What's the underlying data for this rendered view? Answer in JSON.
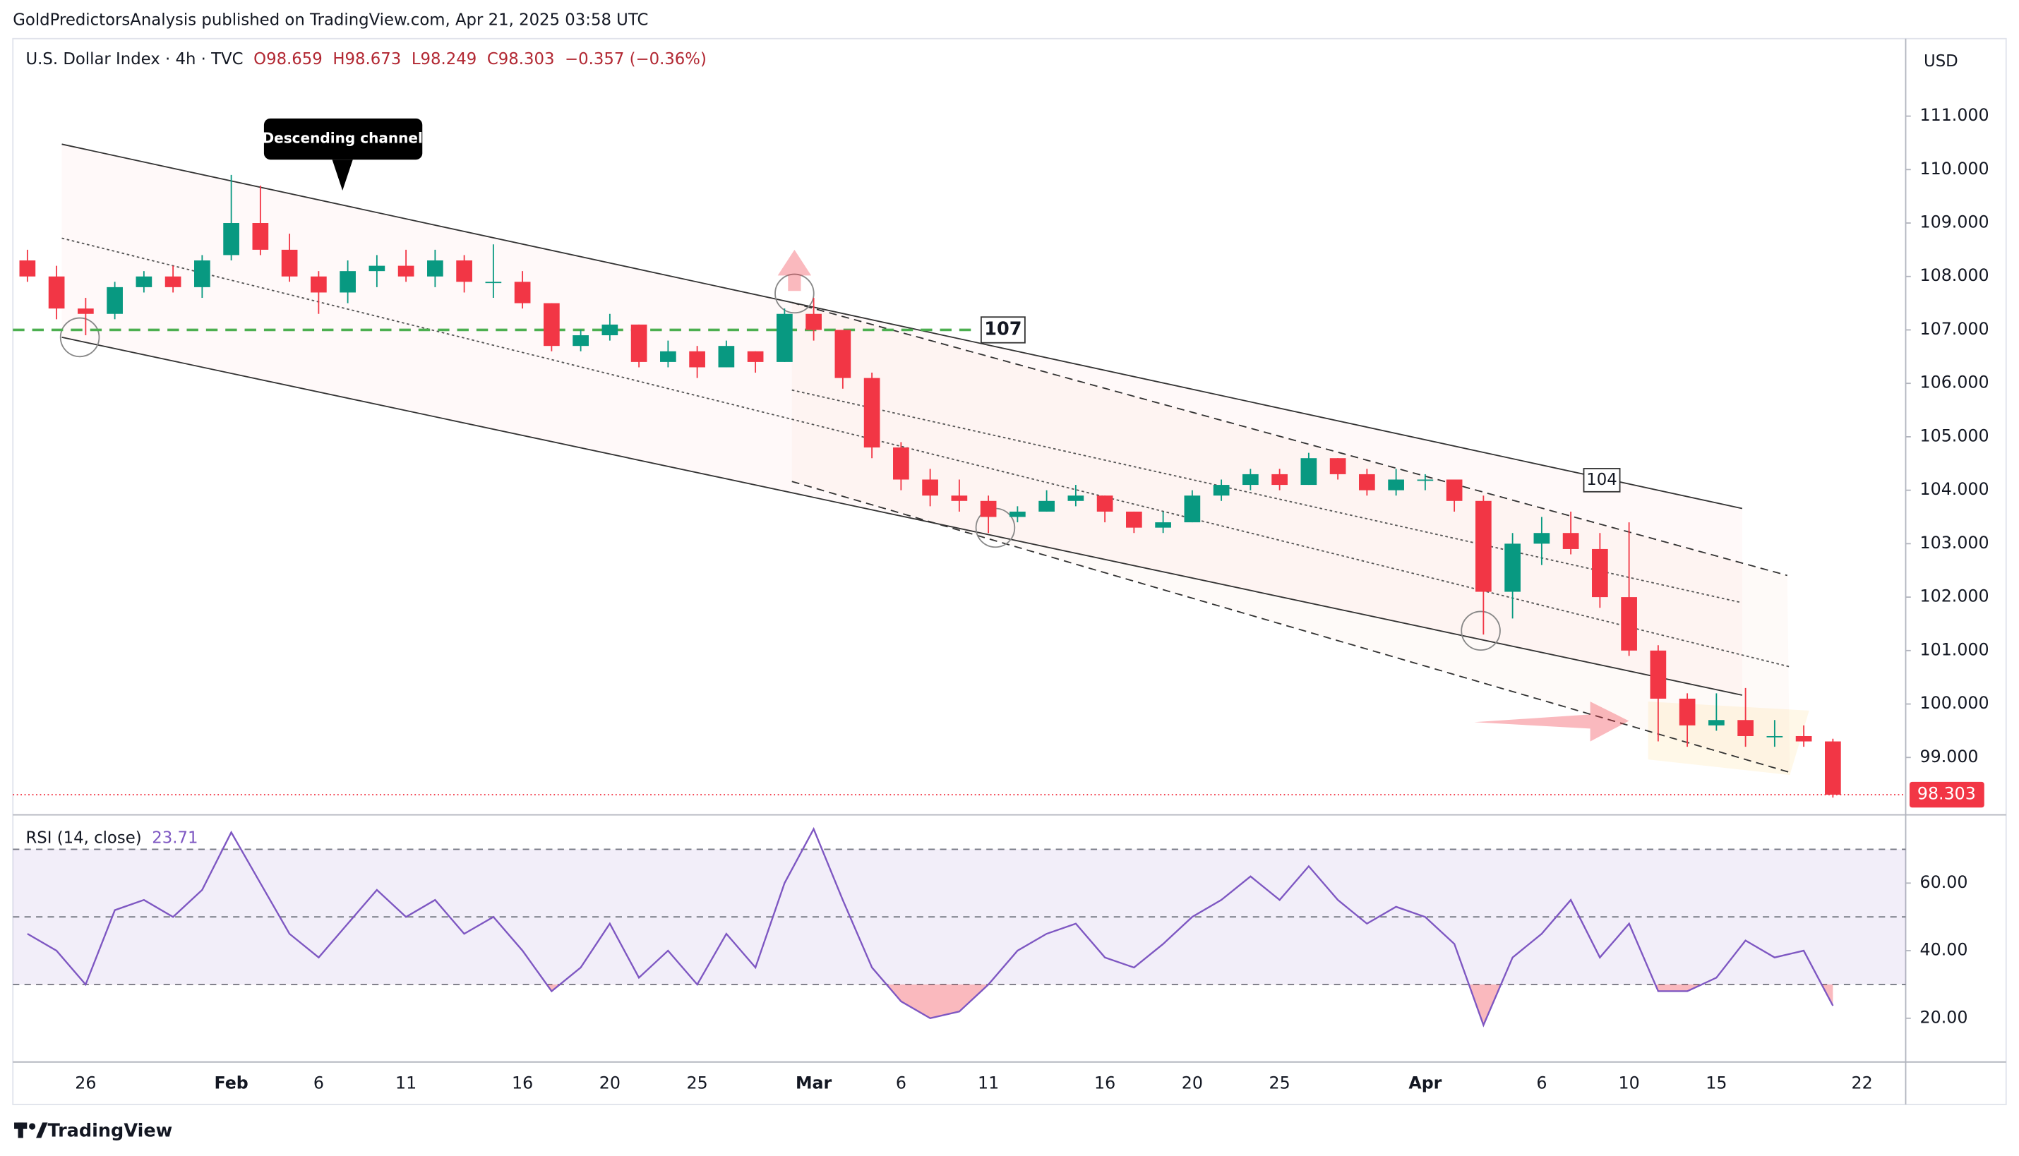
{
  "header": {
    "published": "GoldPredictorsAnalysis published on TradingView.com, Apr 21, 2025 03:58 UTC",
    "footer": "TradingView"
  },
  "chart_data": {
    "type": "candlestick",
    "title": "U.S. Dollar Index · 4h · TVC",
    "ohlc_labels": [
      "O98.659",
      "H98.673",
      "L98.249",
      "C98.303",
      "−0.357 (−0.36%)"
    ],
    "currency": "USD",
    "categories": [
      null,
      null,
      "26",
      null,
      null,
      null,
      null,
      "Feb",
      null,
      null,
      "6",
      null,
      null,
      "11",
      null,
      null,
      null,
      "16",
      null,
      null,
      "20",
      null,
      null,
      "25",
      null,
      null,
      null,
      "Mar",
      null,
      null,
      "6",
      null,
      null,
      "11",
      null,
      null,
      null,
      "16",
      null,
      null,
      "20",
      null,
      null,
      "25",
      null,
      null,
      null,
      null,
      "Apr",
      null,
      null,
      null,
      "6",
      null,
      null,
      "10",
      null,
      null,
      "15",
      null,
      null,
      null,
      null,
      "22",
      null
    ],
    "open": [
      108.3,
      108.0,
      107.4,
      107.3,
      107.8,
      108.0,
      107.8,
      108.4,
      109.0,
      108.5,
      108.0,
      107.7,
      108.1,
      108.2,
      108.0,
      108.3,
      107.9,
      107.9,
      107.5,
      106.7,
      106.9,
      107.1,
      106.4,
      106.6,
      106.3,
      106.6,
      106.4,
      107.3,
      107.0,
      106.1,
      104.8,
      104.2,
      103.9,
      103.8,
      103.5,
      103.6,
      103.8,
      103.9,
      103.6,
      103.3,
      103.4,
      103.9,
      104.1,
      104.3,
      104.1,
      104.6,
      104.3,
      104.0,
      104.2,
      104.2,
      103.8,
      102.1,
      103.0,
      103.2,
      102.9,
      102.0,
      101.0,
      100.1,
      99.6,
      99.7,
      99.4,
      99.4,
      99.3,
      null,
      null
    ],
    "high": [
      108.5,
      108.2,
      107.6,
      107.9,
      108.1,
      108.2,
      108.4,
      109.9,
      109.7,
      108.8,
      108.1,
      108.3,
      108.4,
      108.5,
      108.5,
      108.4,
      108.6,
      108.1,
      107.5,
      107.0,
      107.3,
      107.1,
      106.8,
      106.7,
      106.8,
      106.6,
      107.4,
      107.6,
      107.0,
      106.2,
      104.9,
      104.4,
      104.2,
      103.9,
      103.7,
      104.0,
      104.1,
      103.9,
      103.6,
      103.6,
      104.0,
      104.2,
      104.4,
      104.4,
      104.7,
      104.6,
      104.4,
      104.4,
      104.3,
      104.2,
      103.9,
      103.2,
      103.5,
      103.6,
      103.2,
      103.4,
      101.1,
      100.2,
      100.2,
      100.3,
      99.7,
      99.6,
      99.35,
      null,
      null
    ],
    "low": [
      107.9,
      107.2,
      106.9,
      107.2,
      107.7,
      107.7,
      107.6,
      108.3,
      108.4,
      107.9,
      107.3,
      107.5,
      107.8,
      107.9,
      107.8,
      107.7,
      107.6,
      107.4,
      106.6,
      106.6,
      106.8,
      106.3,
      106.3,
      106.1,
      106.3,
      106.2,
      106.4,
      106.8,
      105.9,
      104.6,
      104.0,
      103.7,
      103.6,
      103.2,
      103.4,
      103.6,
      103.7,
      103.4,
      103.2,
      103.2,
      103.4,
      103.8,
      104.0,
      104.0,
      104.1,
      104.2,
      103.9,
      103.9,
      104.0,
      103.6,
      101.3,
      101.6,
      102.6,
      102.8,
      101.8,
      100.9,
      99.3,
      99.2,
      99.5,
      99.2,
      99.2,
      99.2,
      98.249,
      null,
      null
    ],
    "close": [
      108.0,
      107.4,
      107.3,
      107.8,
      108.0,
      107.8,
      108.3,
      109.0,
      108.5,
      108.0,
      107.7,
      108.1,
      108.2,
      108.0,
      108.3,
      107.9,
      107.9,
      107.5,
      106.7,
      106.9,
      107.1,
      106.4,
      106.6,
      106.3,
      106.7,
      106.4,
      107.3,
      107.0,
      106.1,
      104.8,
      104.2,
      103.9,
      103.8,
      103.5,
      103.6,
      103.8,
      103.9,
      103.6,
      103.3,
      103.4,
      103.9,
      104.1,
      104.3,
      104.1,
      104.6,
      104.3,
      104.0,
      104.2,
      104.2,
      103.8,
      102.1,
      103.0,
      103.2,
      102.9,
      102.0,
      101.0,
      100.1,
      99.6,
      99.7,
      99.4,
      99.4,
      99.3,
      98.303,
      null,
      null
    ],
    "up_color": "#089981",
    "down_color": "#f23645",
    "ylim": [
      97.95,
      112.45
    ],
    "yticks": [
      {
        "value": 99,
        "label": "99.000"
      },
      {
        "value": 100,
        "label": "100.000"
      },
      {
        "value": 101,
        "label": "101.000"
      },
      {
        "value": 102,
        "label": "102.000"
      },
      {
        "value": 103,
        "label": "103.000"
      },
      {
        "value": 104,
        "label": "104.000"
      },
      {
        "value": 105,
        "label": "105.000"
      },
      {
        "value": 106,
        "label": "106.000"
      },
      {
        "value": 107,
        "label": "107.000"
      },
      {
        "value": 108,
        "label": "108.000"
      },
      {
        "value": 109,
        "label": "109.000"
      },
      {
        "value": 110,
        "label": "110.000"
      },
      {
        "value": 111,
        "label": "111.000"
      }
    ],
    "last_price": {
      "value": 98.303,
      "label": "98.303"
    },
    "level": {
      "value": 107,
      "label": "107",
      "color": "#4caf50"
    },
    "annotations": [
      "Descending channel",
      "104"
    ],
    "rsi": {
      "title": "RSI (14, close)",
      "last": "23.71",
      "color": "#7e57c2",
      "values": [
        45,
        40,
        30,
        52,
        55,
        50,
        58,
        75,
        60,
        45,
        38,
        48,
        58,
        50,
        55,
        45,
        50,
        40,
        28,
        35,
        48,
        32,
        40,
        30,
        45,
        35,
        60,
        76,
        55,
        35,
        25,
        20,
        22,
        30,
        40,
        45,
        48,
        38,
        35,
        42,
        50,
        55,
        62,
        55,
        65,
        55,
        48,
        53,
        50,
        42,
        18,
        38,
        45,
        55,
        38,
        48,
        28,
        28,
        32,
        43,
        38,
        40,
        23.71,
        null,
        null
      ],
      "ylim": [
        7.05,
        79.05
      ],
      "yticks": [
        {
          "value": 20,
          "label": "20.00"
        },
        {
          "value": 40,
          "label": "40.00"
        },
        {
          "value": 60,
          "label": "60.00"
        }
      ],
      "bands": [
        30,
        50,
        70
      ]
    }
  }
}
